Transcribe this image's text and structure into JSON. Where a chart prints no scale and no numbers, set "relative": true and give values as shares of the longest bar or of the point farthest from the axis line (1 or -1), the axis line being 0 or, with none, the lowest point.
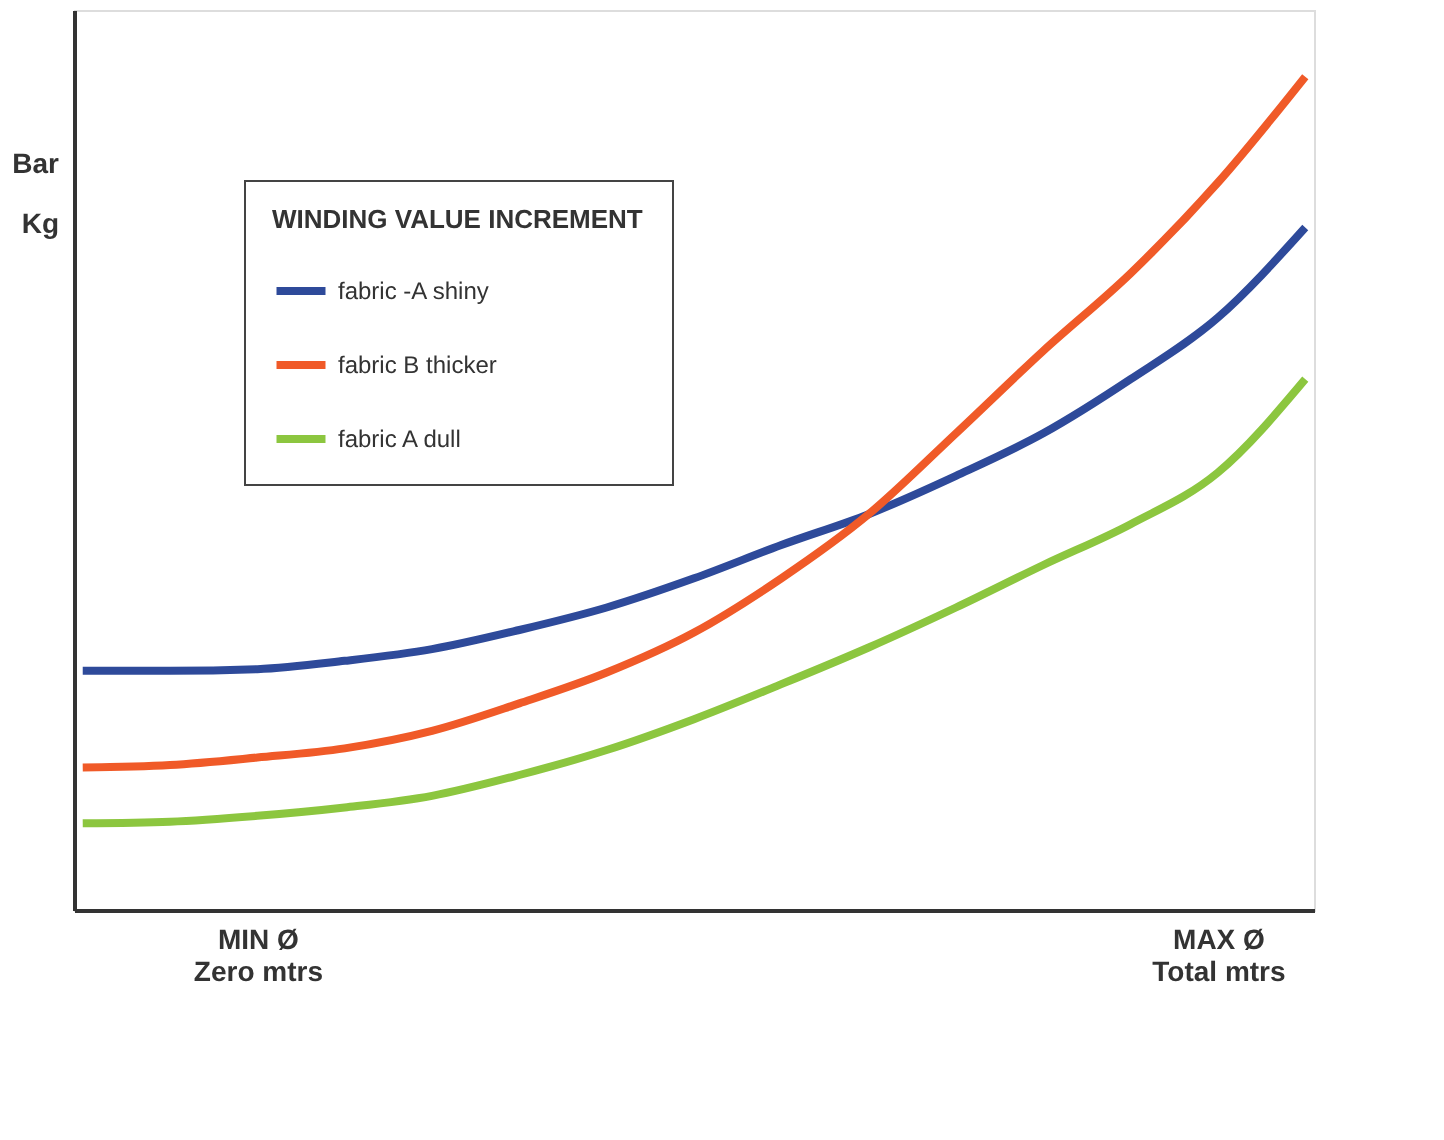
{
  "chart_data": {
    "type": "line",
    "relative": true,
    "ylabel": "Bar\nKg",
    "legend_title": "WINDING VALUE INCREMENT",
    "legend": "top left",
    "grid": false,
    "marker": "none",
    "line_style": "solid",
    "categories": [
      null,
      null,
      "MIN Ø\nZero mtrs",
      null,
      null,
      null,
      null,
      null,
      null,
      null,
      null,
      null,
      null,
      "MAX Ø\nTotal mtrs",
      null
    ],
    "series": [
      {
        "name": "fabric -A shiny",
        "color": "#2e4a9a",
        "values": [
          0.287,
          0.287,
          0.289,
          0.299,
          0.313,
          0.336,
          0.363,
          0.398,
          0.438,
          0.475,
          0.521,
          0.572,
          0.637,
          0.711,
          0.819
        ]
      },
      {
        "name": "fabric B thicker",
        "color": "#f05a28",
        "values": [
          0.171,
          0.174,
          0.183,
          0.194,
          0.215,
          0.248,
          0.285,
          0.333,
          0.398,
          0.475,
          0.572,
          0.671,
          0.764,
          0.873,
          1
        ]
      },
      {
        "name": "fabric A dull",
        "color": "#8cc63f",
        "values": [
          0.104,
          0.106,
          0.113,
          0.123,
          0.137,
          0.162,
          0.192,
          0.229,
          0.271,
          0.315,
          0.363,
          0.414,
          0.463,
          0.525,
          0.637
        ]
      }
    ]
  }
}
